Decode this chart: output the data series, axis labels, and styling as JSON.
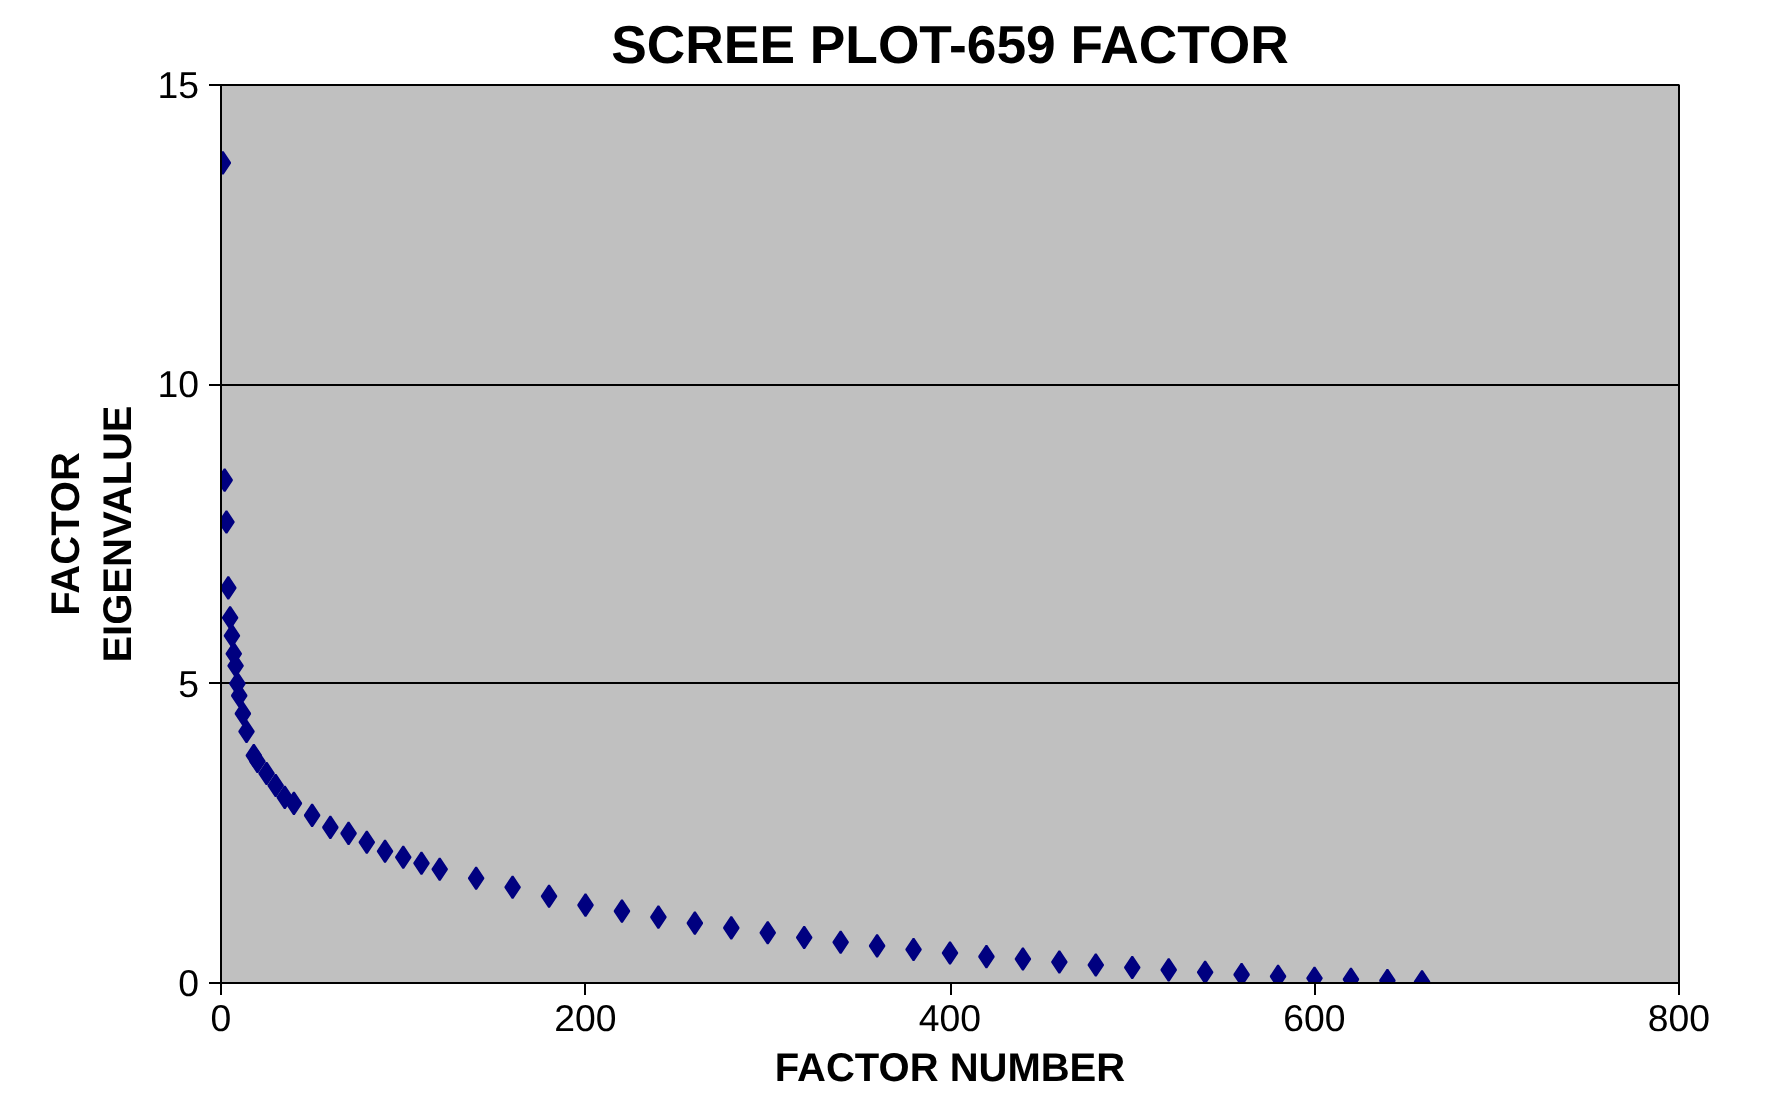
{
  "chart_data": {
    "type": "scatter",
    "title": "SCREE PLOT-659 FACTOR",
    "xlabel": "FACTOR NUMBER",
    "ylabel": "FACTOR\nEIGENVALUE",
    "xlim": [
      0,
      800
    ],
    "ylim": [
      0,
      15
    ],
    "xticks": [
      0,
      200,
      400,
      600,
      800
    ],
    "yticks": [
      0,
      5,
      10,
      15
    ],
    "grid": "y",
    "marker": "diamond",
    "series": [
      {
        "color": "#000080",
        "x": [
          1,
          2,
          3,
          4,
          5,
          6,
          7,
          8,
          9,
          10,
          12,
          14,
          18,
          20,
          25,
          30,
          35,
          40,
          50,
          60,
          70,
          80,
          90,
          100,
          110,
          120,
          140,
          160,
          180,
          200,
          220,
          240,
          260,
          280,
          300,
          320,
          340,
          360,
          380,
          400,
          420,
          440,
          460,
          480,
          500,
          520,
          540,
          560,
          580,
          600,
          620,
          640,
          659
        ],
        "values": [
          13.7,
          8.4,
          7.7,
          6.6,
          6.1,
          5.8,
          5.5,
          5.3,
          5.0,
          4.8,
          4.5,
          4.2,
          3.8,
          3.7,
          3.5,
          3.3,
          3.1,
          3.0,
          2.8,
          2.6,
          2.5,
          2.35,
          2.2,
          2.1,
          2.0,
          1.9,
          1.75,
          1.6,
          1.45,
          1.3,
          1.2,
          1.1,
          1.0,
          0.92,
          0.84,
          0.76,
          0.68,
          0.62,
          0.56,
          0.5,
          0.44,
          0.4,
          0.35,
          0.3,
          0.26,
          0.22,
          0.18,
          0.14,
          0.11,
          0.08,
          0.06,
          0.04,
          0.02
        ]
      }
    ]
  }
}
